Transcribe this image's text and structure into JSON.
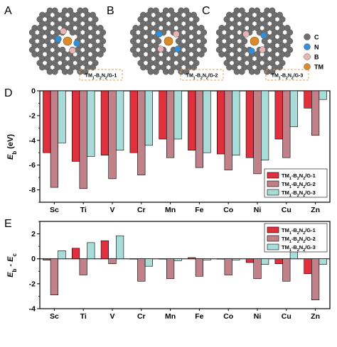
{
  "panels": {
    "A": "A",
    "B": "B",
    "C": "C",
    "D": "D",
    "E": "E"
  },
  "structures": [
    {
      "label": "TM1-B2N2/G-1",
      "label_html": [
        "TM",
        "1",
        "-B",
        "2",
        "N",
        "2",
        "/G-1"
      ]
    },
    {
      "label": "TM1-B2N2/G-2",
      "label_html": [
        "TM",
        "1",
        "-B",
        "2",
        "N",
        "2",
        "/G-2"
      ]
    },
    {
      "label": "TM1-B2N2/G-3",
      "label_html": [
        "TM",
        "1",
        "-B",
        "2",
        "N",
        "2",
        "/G-3"
      ]
    }
  ],
  "atom_key": [
    {
      "symbol": "C",
      "color": "#6e6e6e"
    },
    {
      "symbol": "N",
      "color": "#2f8fd8"
    },
    {
      "symbol": "B",
      "color": "#e7b3b3"
    },
    {
      "symbol": "TM",
      "color": "#d98a2b"
    }
  ],
  "series_colors": [
    "#e0303e",
    "#c08189",
    "#a8dcd9"
  ],
  "chart_data": [
    {
      "type": "bar",
      "panel": "D",
      "categories": [
        "Sc",
        "Ti",
        "V",
        "Cr",
        "Mn",
        "Fe",
        "Co",
        "Ni",
        "Cu",
        "Zn"
      ],
      "ylabel": "Eb (eV)",
      "ylim": [
        -9,
        0
      ],
      "yticks": [
        0,
        -2,
        -4,
        -6,
        -8
      ],
      "legend": "bottom-right",
      "series": [
        {
          "name": "TM1-B2N2/G-1",
          "values": [
            -5.0,
            -5.7,
            -5.2,
            -5.0,
            -3.9,
            -4.8,
            -5.1,
            -5.4,
            -3.9,
            -1.4
          ]
        },
        {
          "name": "TM1-B2N2/G-2",
          "values": [
            -7.8,
            -7.9,
            -7.1,
            -6.8,
            -5.4,
            -6.2,
            -6.4,
            -6.7,
            -5.4,
            -3.6
          ]
        },
        {
          "name": "TM1-B2N2/G-3",
          "values": [
            -4.2,
            -5.3,
            -4.8,
            -4.4,
            -3.9,
            -5.0,
            -5.2,
            -5.6,
            -2.9,
            -0.7
          ]
        }
      ]
    },
    {
      "type": "bar",
      "panel": "E",
      "categories": [
        "Sc",
        "Ti",
        "V",
        "Cr",
        "Mn",
        "Fe",
        "Co",
        "Ni",
        "Cu",
        "Zn"
      ],
      "ylabel": "Eb - Ec (eV)",
      "ylim": [
        -4,
        3
      ],
      "yticks": [
        2,
        0,
        -2,
        -4
      ],
      "legend": "top-right",
      "series": [
        {
          "name": "TM1-B2N2/G-1",
          "values": [
            -0.1,
            0.85,
            1.45,
            0.0,
            0.0,
            0.1,
            0.0,
            -0.3,
            -0.4,
            -1.2
          ]
        },
        {
          "name": "TM1-B2N2/G-2",
          "values": [
            -2.9,
            -1.3,
            -0.4,
            -1.8,
            -1.6,
            -1.4,
            -1.3,
            -1.6,
            -1.8,
            -3.3
          ]
        },
        {
          "name": "TM1-B2N2/G-3",
          "values": [
            0.65,
            1.3,
            1.85,
            -0.6,
            -0.15,
            -0.1,
            -0.1,
            -0.45,
            0.6,
            -0.45
          ]
        }
      ]
    }
  ]
}
